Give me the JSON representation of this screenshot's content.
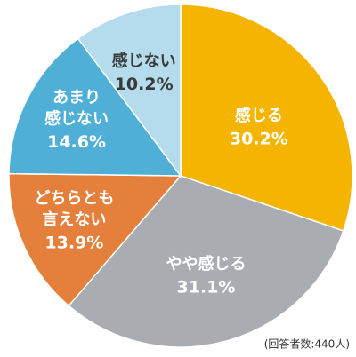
{
  "chart_data": {
    "type": "pie",
    "categories": [
      "感じる",
      "やや感じる",
      "どちらとも\n言えない",
      "あまり\n感じない",
      "感じない"
    ],
    "values": [
      30.2,
      31.1,
      13.9,
      14.6,
      10.2
    ],
    "value_labels": [
      "30.2%",
      "31.1%",
      "13.9%",
      "14.6%",
      "10.2%"
    ],
    "colors": [
      "#f4b400",
      "#a9adb2",
      "#e4803c",
      "#4fafd6",
      "#b5dcec"
    ],
    "label_colors": [
      "#ffffff",
      "#ffffff",
      "#ffffff",
      "#ffffff",
      "#3a3a3a"
    ],
    "note": "(回答者数:440人)"
  }
}
